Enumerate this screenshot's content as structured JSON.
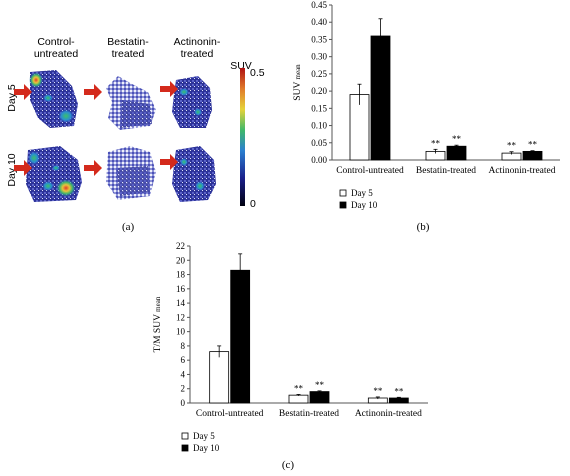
{
  "panel_a": {
    "label": "(a)",
    "columns": [
      "Control-\nuntreated",
      "Bestatin-\ntreated",
      "Actinonin-\ntreated"
    ],
    "rows": [
      "Day 5",
      "Day 10"
    ],
    "colorbar": {
      "label": "SUV",
      "max": "0.5",
      "min": "0"
    },
    "colors": {
      "arrow": "#d42a1c",
      "scan_blue": "#2a2f9a"
    }
  },
  "chart_data": [
    {
      "type": "bar",
      "panel_label": "(b)",
      "categories": [
        "Control-untreated",
        "Bestatin-treated",
        "Actinonin-treated"
      ],
      "series": [
        {
          "name": "Day 5",
          "values": [
            0.19,
            0.025,
            0.02
          ],
          "errors": [
            0.03,
            0.006,
            0.004
          ],
          "fill": "#ffffff"
        },
        {
          "name": "Day 10",
          "values": [
            0.36,
            0.04,
            0.025
          ],
          "errors": [
            0.05,
            0.003,
            0.002
          ],
          "fill": "#000000"
        }
      ],
      "significance": [
        [
          "",
          ""
        ],
        [
          "**",
          "**"
        ],
        [
          "**",
          "**"
        ]
      ],
      "ylabel": "SUV",
      "ylabel_sub": "mean",
      "ylim": [
        0,
        0.45
      ],
      "yticks": [
        "0.00",
        "0.05",
        "0.10",
        "0.15",
        "0.20",
        "0.25",
        "0.30",
        "0.35",
        "0.40",
        "0.45"
      ],
      "legend_position": "bottom-left"
    },
    {
      "type": "bar",
      "panel_label": "(c)",
      "categories": [
        "Control-untreated",
        "Bestatin-treated",
        "Actinonin-treated"
      ],
      "series": [
        {
          "name": "Day 5",
          "values": [
            7.2,
            1.1,
            0.7
          ],
          "errors": [
            0.8,
            0.1,
            0.15
          ],
          "fill": "#ffffff"
        },
        {
          "name": "Day 10",
          "values": [
            18.6,
            1.6,
            0.7
          ],
          "errors": [
            2.3,
            0.1,
            0.1
          ],
          "fill": "#000000"
        }
      ],
      "significance": [
        [
          "",
          ""
        ],
        [
          "**",
          "**"
        ],
        [
          "**",
          "**"
        ]
      ],
      "ylabel": "T/M SUV",
      "ylabel_sub": "mean",
      "ylim": [
        0,
        22
      ],
      "yticks": [
        "0",
        "2",
        "4",
        "6",
        "8",
        "10",
        "12",
        "14",
        "16",
        "18",
        "20",
        "22"
      ],
      "legend_position": "bottom-left"
    }
  ]
}
